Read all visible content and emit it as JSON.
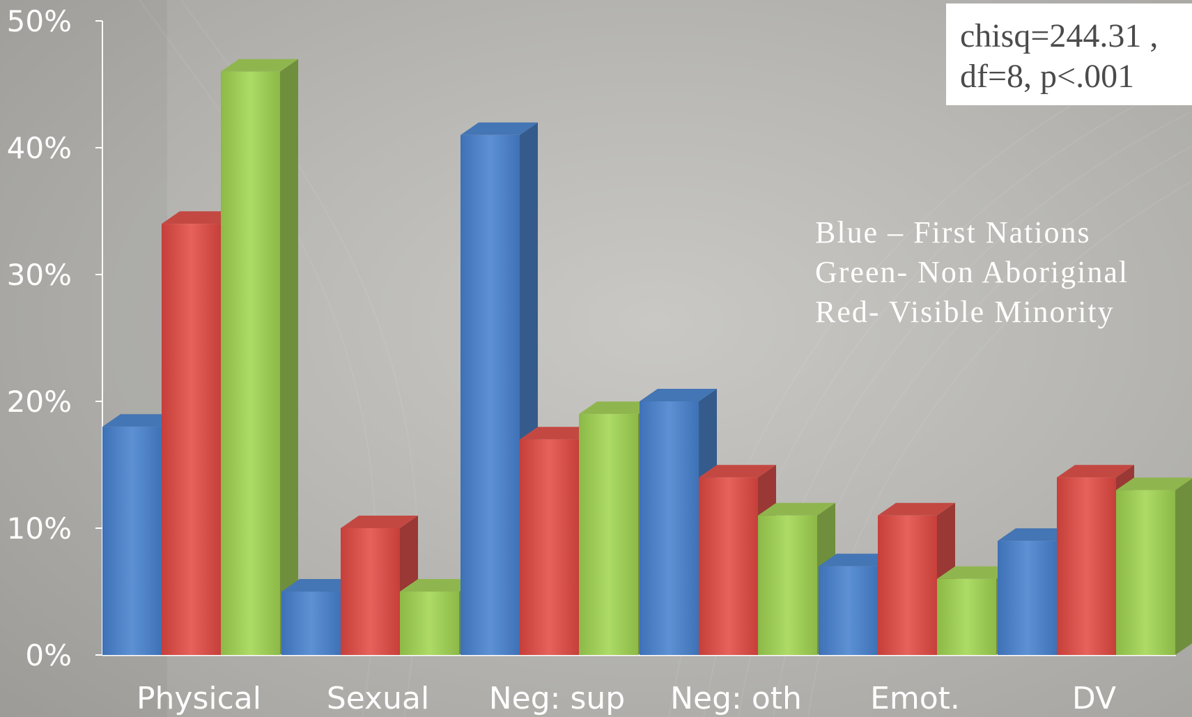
{
  "chart_data": {
    "type": "bar",
    "categories": [
      "Physical",
      "Sexual",
      "Neg: sup",
      "Neg: oth",
      "Emot.",
      "DV"
    ],
    "series": [
      {
        "color": "#4a7fc4",
        "values": [
          18,
          5,
          41,
          20,
          7,
          9
        ]
      },
      {
        "color": "#d44e48",
        "values": [
          34,
          10,
          17,
          14,
          11,
          14
        ]
      },
      {
        "color": "#9bc655",
        "values": [
          46,
          5,
          19,
          11,
          6,
          13
        ]
      }
    ],
    "y_ticks": [
      "0%",
      "10%",
      "20%",
      "30%",
      "40%",
      "50%"
    ],
    "ylim": [
      0,
      50
    ],
    "grid": false,
    "style": "3d-clustered-bar"
  },
  "stat_box": {
    "line1": "chisq=244.31 ,",
    "line2": "df=8, p<.001"
  },
  "legend": {
    "lines": [
      "Blue – First Nations",
      "Green- Non Aboriginal",
      "Red- Visible Minority"
    ]
  }
}
